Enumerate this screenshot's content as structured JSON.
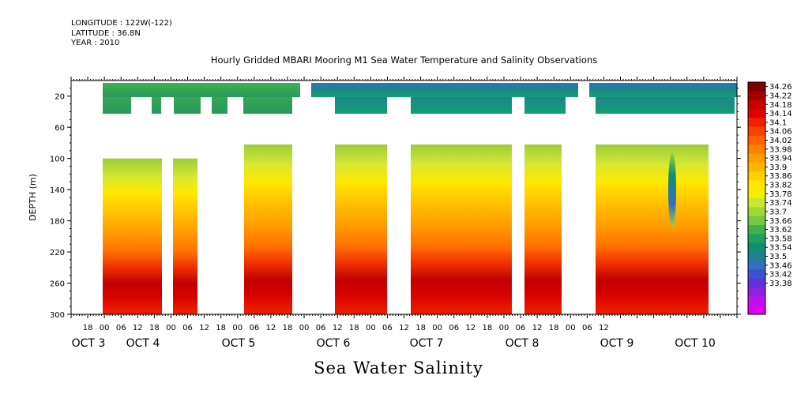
{
  "header": {
    "longitude": "LONGITUDE : 122W(-122)",
    "latitude": "LATITUDE : 36.8N",
    "year": "YEAR : 2010"
  },
  "title": "Hourly Gridded MBARI Mooring M1 Sea Water Temperature and Salinity Observations",
  "footer": "Sea Water Salinity",
  "chart_data": {
    "type": "heatmap",
    "title": "Hourly Gridded MBARI Mooring M1 Sea Water Temperature and Salinity Observations",
    "xlabel": "",
    "ylabel": "DEPTH (m)",
    "x_ticks_hours": [
      "18",
      "00",
      "06",
      "12",
      "18",
      "00",
      "06",
      "12",
      "18",
      "00",
      "06",
      "12",
      "18",
      "00",
      "06",
      "12",
      "18",
      "00",
      "06",
      "12",
      "18",
      "00",
      "06",
      "12",
      "18",
      "00",
      "06",
      "12",
      "18",
      "00",
      "06",
      "12"
    ],
    "day_labels": [
      "OCT 3",
      "OCT 4",
      "OCT 5",
      "OCT 6",
      "OCT 7",
      "OCT 8",
      "OCT 9",
      "OCT 10"
    ],
    "x_range_hours_from_oct2_00": [
      12,
      252
    ],
    "y_ticks": [
      20,
      60,
      100,
      140,
      180,
      220,
      260,
      300
    ],
    "ylim": [
      300,
      0
    ],
    "colorbar": {
      "levels": [
        "34.26",
        "34.22",
        "34.18",
        "34.14",
        "34.1",
        "34.06",
        "34.02",
        "33.98",
        "33.94",
        "33.9",
        "33.86",
        "33.82",
        "33.78",
        "33.74",
        "33.7",
        "33.66",
        "33.62",
        "33.58",
        "33.54",
        "33.5",
        "33.46",
        "33.42",
        "33.38"
      ],
      "colors": [
        "#7f0000",
        "#a50000",
        "#c80000",
        "#e00000",
        "#f02000",
        "#f84000",
        "#ff6000",
        "#ff8000",
        "#ff9c00",
        "#ffb400",
        "#ffd000",
        "#ffe800",
        "#f0f000",
        "#c8e830",
        "#a0d838",
        "#78c840",
        "#40b050",
        "#20a060",
        "#109070",
        "#208090",
        "#3070c0",
        "#4050d0",
        "#6030e0",
        "#9020e0",
        "#c010f0",
        "#e000f0"
      ]
    },
    "series_summary": [
      {
        "depth_m": 20,
        "salinity_approx": [
          33.6,
          33.7
        ]
      },
      {
        "depth_m": 100,
        "salinity_approx": [
          33.78,
          33.86
        ]
      },
      {
        "depth_m": 180,
        "salinity_approx": [
          34.0,
          34.06
        ]
      },
      {
        "depth_m": 260,
        "salinity_approx": [
          34.14,
          34.2
        ]
      },
      {
        "depth_m": 300,
        "salinity_approx": [
          34.1,
          34.18
        ]
      }
    ]
  }
}
